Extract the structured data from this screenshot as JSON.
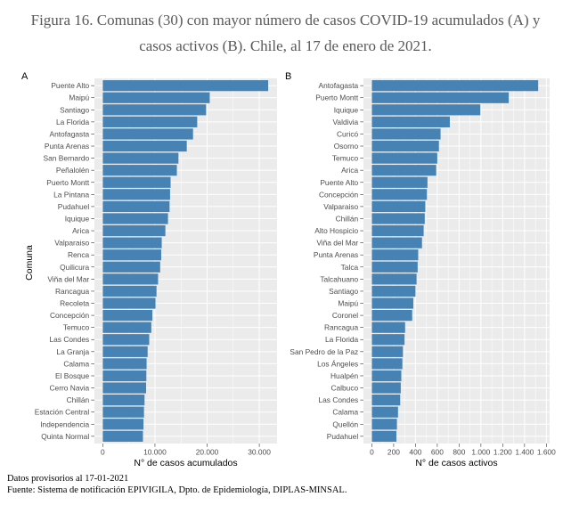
{
  "figure": {
    "title_line1": "Figura 16. Comunas (30) con mayor número de casos COVID-19 acumulados (A) y",
    "title_line2": "casos activos (B). Chile, al 17 de enero de 2021.",
    "note": "Datos provisorios al 17-01-2021",
    "source": "Fuente: Sistema de notificación EPIVIGILA, Dpto. de Epidemiología, DIPLAS-MINSAL."
  },
  "colors": {
    "bar": "#4682B4",
    "panel_background": "#EBEBEB",
    "grid": "#FFFFFF",
    "tick_label": "#4D4D4D",
    "tick_mark": "#333333"
  },
  "chart_data": [
    {
      "panel_label": "A",
      "type": "bar",
      "horizontal": true,
      "categories": [
        "Puente Alto",
        "Maipú",
        "Santiago",
        "La Florida",
        "Antofagasta",
        "Punta Arenas",
        "San Bernardo",
        "Peñalolén",
        "Puerto Montt",
        "La Pintana",
        "Pudahuel",
        "Iquique",
        "Arica",
        "Valparaiso",
        "Renca",
        "Quilicura",
        "Viña del Mar",
        "Rancagua",
        "Recoleta",
        "Concepción",
        "Temuco",
        "Las Condes",
        "La Granja",
        "Calama",
        "El Bosque",
        "Cerro Navia",
        "Chillán",
        "Estación Central",
        "Independencia",
        "Quinta Normal"
      ],
      "values": [
        31700,
        20500,
        19800,
        18100,
        17300,
        16100,
        14500,
        14200,
        13000,
        12900,
        12800,
        12500,
        12000,
        11300,
        11200,
        11000,
        10600,
        10300,
        10100,
        9500,
        9300,
        8900,
        8600,
        8400,
        8350,
        8300,
        8000,
        7900,
        7800,
        7700
      ],
      "xlabel": "N° de casos acumulados",
      "ylabel": "Comuna",
      "xlim": [
        -1600,
        33400
      ],
      "xticks": [
        0,
        10000,
        20000,
        30000
      ],
      "xtick_labels": [
        "0",
        "10.000",
        "20.000",
        "30.000"
      ],
      "grid": true
    },
    {
      "panel_label": "B",
      "type": "bar",
      "horizontal": true,
      "categories": [
        "Antofagasta",
        "Puerto Montt",
        "Iquique",
        "Valdivia",
        "Curicó",
        "Osorno",
        "Temuco",
        "Arica",
        "Puente Alto",
        "Concepción",
        "Valparaiso",
        "Chillán",
        "Alto Hospicio",
        "Viña del Mar",
        "Punta Arenas",
        "Talca",
        "Talcahuano",
        "Santiago",
        "Maipú",
        "Coronel",
        "Rancagua",
        "La Florida",
        "San Pedro de la Paz",
        "Los Ángeles",
        "Hualpén",
        "Calbuco",
        "Las Condes",
        "Calama",
        "Quellón",
        "Pudahuel"
      ],
      "values": [
        1525,
        1255,
        995,
        715,
        630,
        615,
        600,
        590,
        510,
        505,
        490,
        485,
        475,
        460,
        425,
        420,
        410,
        400,
        380,
        370,
        305,
        300,
        285,
        280,
        270,
        265,
        260,
        240,
        230,
        225
      ],
      "xlabel": "N° de casos activos",
      "xlim": [
        -77,
        1630
      ],
      "xticks": [
        0,
        200,
        400,
        600,
        800,
        1000,
        1200,
        1400,
        1600
      ],
      "xtick_labels": [
        "0",
        "200",
        "400",
        "600",
        "800",
        "1.000",
        "1.200",
        "1.400",
        "1.600"
      ],
      "grid": true
    }
  ]
}
